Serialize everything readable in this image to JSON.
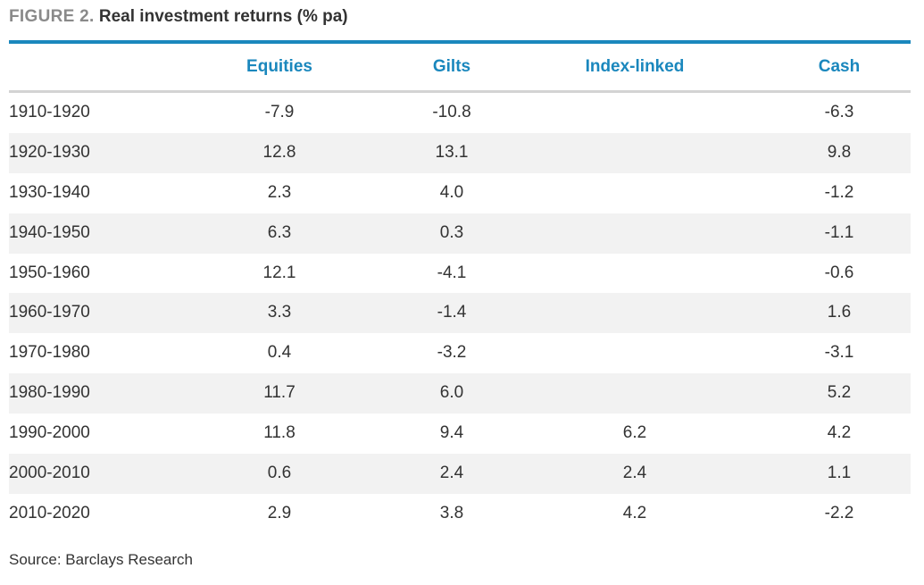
{
  "title": {
    "figure_label": "FIGURE 2.",
    "text": "Real investment returns (% pa)"
  },
  "colors": {
    "accent": "#1a87bd",
    "alt_row": "#f2f2f2",
    "text": "#333333"
  },
  "chart_data": {
    "type": "table",
    "title": "Real investment returns (% pa)",
    "columns": [
      "",
      "Equities",
      "Gilts",
      "Index-linked",
      "Cash"
    ],
    "rows": [
      {
        "period": "1910-1920",
        "equities": "-7.9",
        "gilts": "-10.8",
        "index_linked": "",
        "cash": "-6.3"
      },
      {
        "period": "1920-1930",
        "equities": "12.8",
        "gilts": "13.1",
        "index_linked": "",
        "cash": "9.8"
      },
      {
        "period": "1930-1940",
        "equities": "2.3",
        "gilts": "4.0",
        "index_linked": "",
        "cash": "-1.2"
      },
      {
        "period": "1940-1950",
        "equities": "6.3",
        "gilts": "0.3",
        "index_linked": "",
        "cash": "-1.1"
      },
      {
        "period": "1950-1960",
        "equities": "12.1",
        "gilts": "-4.1",
        "index_linked": "",
        "cash": "-0.6"
      },
      {
        "period": "1960-1970",
        "equities": "3.3",
        "gilts": "-1.4",
        "index_linked": "",
        "cash": "1.6"
      },
      {
        "period": "1970-1980",
        "equities": "0.4",
        "gilts": "-3.2",
        "index_linked": "",
        "cash": "-3.1"
      },
      {
        "period": "1980-1990",
        "equities": "11.7",
        "gilts": "6.0",
        "index_linked": "",
        "cash": "5.2"
      },
      {
        "period": "1990-2000",
        "equities": "11.8",
        "gilts": "9.4",
        "index_linked": "6.2",
        "cash": "4.2"
      },
      {
        "period": "2000-2010",
        "equities": "0.6",
        "gilts": "2.4",
        "index_linked": "2.4",
        "cash": "1.1"
      },
      {
        "period": "2010-2020",
        "equities": "2.9",
        "gilts": "3.8",
        "index_linked": "4.2",
        "cash": "-2.2"
      }
    ]
  },
  "source": "Source: Barclays Research"
}
